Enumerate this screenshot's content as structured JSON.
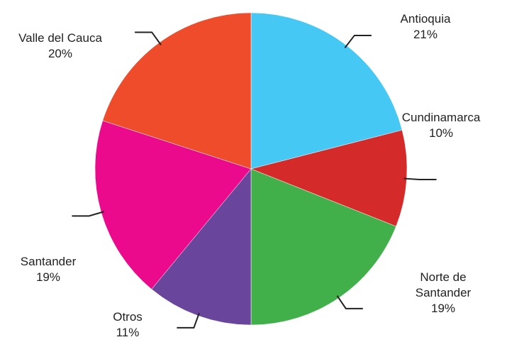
{
  "chart_data": {
    "type": "pie",
    "categories": [
      "Antioquia",
      "Cundinamarca",
      "Norte de Santander",
      "Otros",
      "Santander",
      "Valle del Cauca"
    ],
    "values": [
      21,
      10,
      19,
      11,
      19,
      20
    ],
    "value_labels": [
      "21%",
      "10%",
      "19%",
      "11%",
      "19%",
      "20%"
    ],
    "colors": [
      "#45c8f3",
      "#d42a2a",
      "#42b04a",
      "#6a459c",
      "#ec0a8c",
      "#ef4c2b"
    ]
  }
}
